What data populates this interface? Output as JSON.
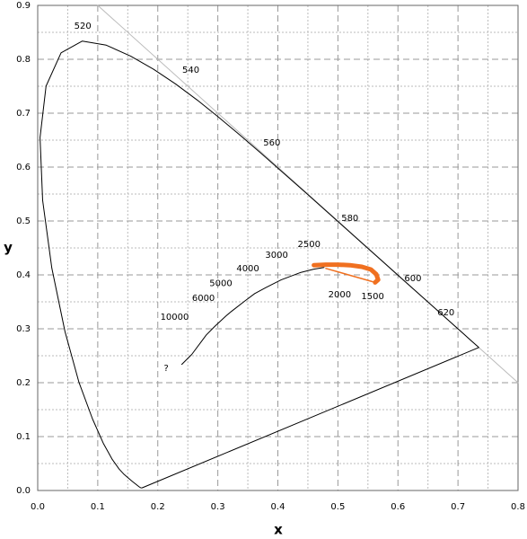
{
  "chart_data": {
    "type": "line",
    "xlabel": "x",
    "ylabel": "y",
    "xlim": [
      0,
      0.8
    ],
    "ylim": [
      0,
      0.9
    ],
    "xticks": [
      {
        "value": 0,
        "label": "0.0"
      },
      0.1,
      0.2,
      0.3,
      0.4,
      0.5,
      0.6,
      0.7,
      0.8
    ],
    "yticks": [
      {
        "value": 0,
        "label": "0.0"
      },
      0.1,
      0.2,
      0.3,
      0.4,
      0.5,
      0.6,
      0.7,
      0.8,
      0.9
    ],
    "grid": true,
    "series": [
      {
        "color": "#bbbbbb",
        "width": 1,
        "x": [
          0.1,
          0.8
        ],
        "values": [
          0.9,
          0.2
        ]
      },
      {
        "color": "#000000",
        "width": 1,
        "x": [
          0.1741,
          0.1733,
          0.1714,
          0.1689,
          0.1644,
          0.1566,
          0.144,
          0.1355,
          0.1241,
          0.1096,
          0.0913,
          0.0687,
          0.0454,
          0.0235,
          0.0082,
          0.0039,
          0.0139,
          0.0389,
          0.0743,
          0.1142,
          0.1547,
          0.1929,
          0.2296,
          0.2658,
          0.3016,
          0.3373,
          0.3731,
          0.4087,
          0.4441,
          0.4788,
          0.5125,
          0.5448,
          0.5752,
          0.6029,
          0.627,
          0.6482,
          0.6658,
          0.6915,
          0.7079,
          0.719,
          0.726,
          0.73,
          0.7334,
          0.7347,
          0.1741
        ],
        "values": [
          0.005,
          0.0048,
          0.0051,
          0.0069,
          0.0109,
          0.0177,
          0.0297,
          0.0399,
          0.0578,
          0.0868,
          0.1327,
          0.2007,
          0.295,
          0.4127,
          0.5384,
          0.6548,
          0.7502,
          0.812,
          0.8338,
          0.8262,
          0.8059,
          0.7816,
          0.7543,
          0.7243,
          0.6923,
          0.6589,
          0.6245,
          0.5896,
          0.5547,
          0.5202,
          0.4866,
          0.4544,
          0.4242,
          0.3965,
          0.3725,
          0.3514,
          0.334,
          0.3083,
          0.292,
          0.2809,
          0.274,
          0.27,
          0.2666,
          0.2653,
          0.005
        ]
      },
      {
        "color": "#000000",
        "width": 1,
        "x": [
          0.24,
          0.2565,
          0.2807,
          0.2952,
          0.3135,
          0.3221,
          0.3451,
          0.3614,
          0.3805,
          0.4053,
          0.4369,
          0.4599,
          0.4769
        ],
        "values": [
          0.234,
          0.2523,
          0.2884,
          0.3048,
          0.3237,
          0.3318,
          0.3516,
          0.3653,
          0.3768,
          0.3907,
          0.4041,
          0.4106,
          0.4137
        ]
      },
      {
        "color": "#f07020",
        "width": 5,
        "x": [
          0.46,
          0.48,
          0.5,
          0.52,
          0.54,
          0.555,
          0.564,
          0.567,
          0.562
        ],
        "values": [
          0.418,
          0.419,
          0.419,
          0.418,
          0.415,
          0.41,
          0.401,
          0.391,
          0.386
        ]
      },
      {
        "color": "#f07020",
        "width": 1.5,
        "x": [
          0.562,
          0.48
        ],
        "values": [
          0.386,
          0.412
        ]
      }
    ],
    "annotations": [
      {
        "text": "520",
        "x": 0.075,
        "y": 0.862
      },
      {
        "text": "540",
        "x": 0.255,
        "y": 0.78
      },
      {
        "text": "560",
        "x": 0.39,
        "y": 0.645
      },
      {
        "text": "580",
        "x": 0.52,
        "y": 0.505
      },
      {
        "text": "600",
        "x": 0.625,
        "y": 0.393
      },
      {
        "text": "620",
        "x": 0.68,
        "y": 0.33
      },
      {
        "text": "10000",
        "x": 0.228,
        "y": 0.322
      },
      {
        "text": "6000",
        "x": 0.276,
        "y": 0.357
      },
      {
        "text": "5000",
        "x": 0.305,
        "y": 0.384
      },
      {
        "text": "4000",
        "x": 0.35,
        "y": 0.412
      },
      {
        "text": "3000",
        "x": 0.398,
        "y": 0.437
      },
      {
        "text": "2500",
        "x": 0.452,
        "y": 0.457
      },
      {
        "text": "2000",
        "x": 0.503,
        "y": 0.363
      },
      {
        "text": "1500",
        "x": 0.558,
        "y": 0.36
      },
      {
        "text": "?",
        "x": 0.214,
        "y": 0.227
      }
    ]
  }
}
